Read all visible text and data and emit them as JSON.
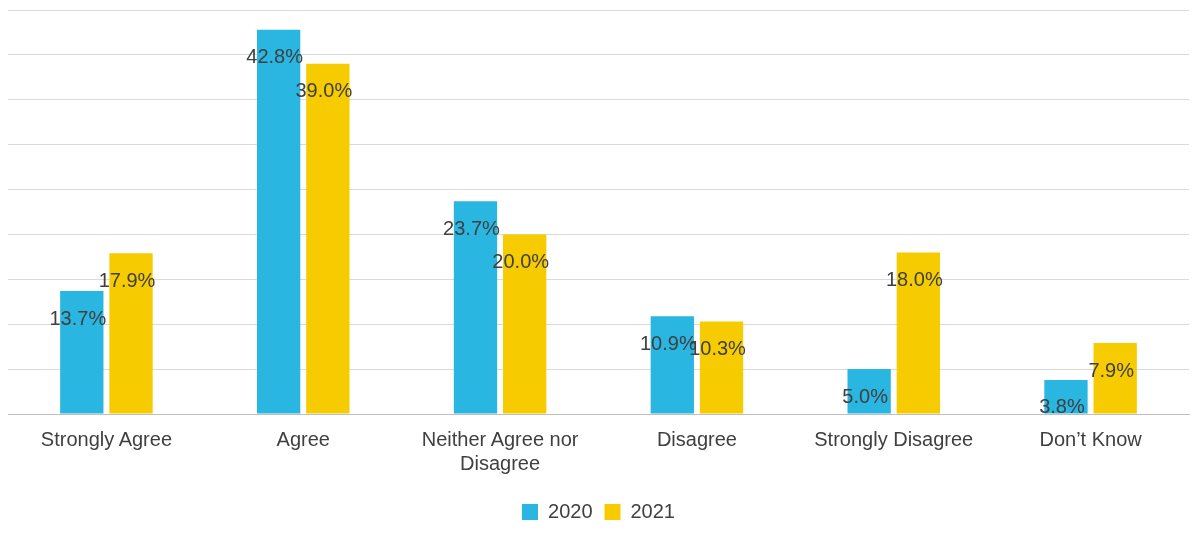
{
  "chart_data": {
    "type": "bar",
    "categories": [
      "Strongly Agree",
      "Agree",
      "Neither Agree nor Disagree",
      "Disagree",
      "Strongly Disagree",
      "Don’t Know"
    ],
    "series": [
      {
        "name": "2020",
        "color": "#29b6e1",
        "values": [
          13.7,
          42.8,
          23.7,
          10.9,
          5.0,
          3.8
        ],
        "value_labels": [
          "13.7%",
          "42.8%",
          "23.7%",
          "10.9%",
          "5.0%",
          "3.8%"
        ]
      },
      {
        "name": "2021",
        "color": "#f6cb00",
        "values": [
          17.9,
          39.0,
          20.0,
          10.3,
          18.0,
          7.9
        ],
        "value_labels": [
          "17.9%",
          "39.0%",
          "20.0%",
          "10.3%",
          "18.0%",
          "7.9%"
        ]
      }
    ],
    "ylim": [
      0,
      45
    ],
    "yticks": [
      {
        "value": 0,
        "label": null
      },
      {
        "value": 5,
        "label": null
      },
      {
        "value": 10,
        "label": null
      },
      {
        "value": 15,
        "label": null
      },
      {
        "value": 20,
        "label": null
      },
      {
        "value": 25,
        "label": null
      },
      {
        "value": 30,
        "label": null
      },
      {
        "value": 35,
        "label": null
      },
      {
        "value": 40,
        "label": null
      },
      {
        "value": 45,
        "label": null
      }
    ],
    "grid": "y",
    "legend": "bottom",
    "tick_labels": "x"
  }
}
